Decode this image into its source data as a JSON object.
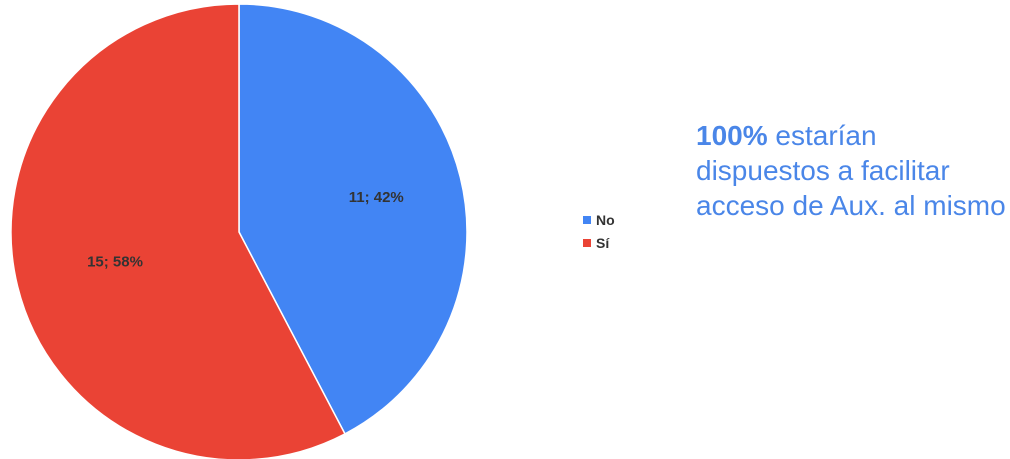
{
  "chart_data": {
    "type": "pie",
    "slices": [
      {
        "name": "No",
        "value": 11,
        "percent": 42,
        "label": "11; 42%",
        "color": "#4285f4"
      },
      {
        "name": "Sí",
        "value": 15,
        "percent": 58,
        "label": "15; 58%",
        "color": "#ea4335"
      }
    ],
    "legend": {
      "placement": "right",
      "entries": [
        "No",
        "Sí"
      ]
    }
  },
  "side_note": {
    "highlight": "100%",
    "text": " estarían dispuestos a facilitar acceso de Aux. al mismo",
    "color": "#4a86e8"
  }
}
